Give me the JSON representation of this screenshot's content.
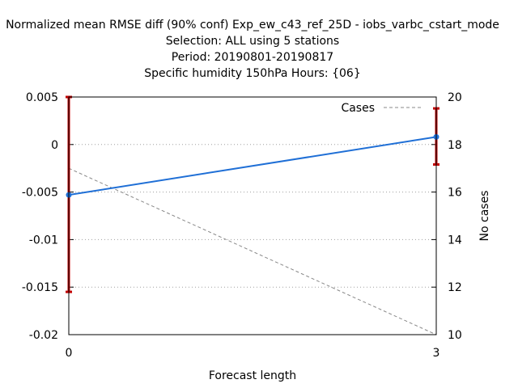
{
  "chart_data": {
    "type": "line",
    "title_lines": [
      "Normalized mean RMSE diff (90% conf) Exp_ew_c43_ref_25D - iobs_varbc_cstart_mode",
      "Selection: ALL using      5 stations",
      "Period: 20190801-20190817",
      "Specific humidity 150hPa   Hours: {06}"
    ],
    "xlabel": "Forecast length",
    "ylabel_right": "No cases",
    "x_ticks": [
      "0",
      "3"
    ],
    "y_ticks": [
      "0.005",
      "0",
      "-0.005",
      "-0.01",
      "-0.015",
      "-0.02"
    ],
    "y2_ticks": [
      "20",
      "18",
      "16",
      "14",
      "12",
      "10"
    ],
    "xlim": [
      0,
      3
    ],
    "ylim": [
      -0.02,
      0.005
    ],
    "y2lim": [
      10,
      20
    ],
    "grid": "horizontal dotted",
    "legend_position": "top-right",
    "series": [
      {
        "axis": "left",
        "x": [
          0,
          3
        ],
        "y": [
          -0.0053,
          0.0008
        ],
        "error_low": [
          -0.0155,
          -0.0021
        ],
        "error_high": [
          0.005,
          0.0038
        ],
        "color": "#1f6fd6",
        "error_color": "#c00000"
      },
      {
        "name": "Cases",
        "axis": "right",
        "x": [
          0,
          3
        ],
        "y": [
          17,
          10
        ],
        "color": "#888888",
        "style": "dashed"
      }
    ]
  }
}
